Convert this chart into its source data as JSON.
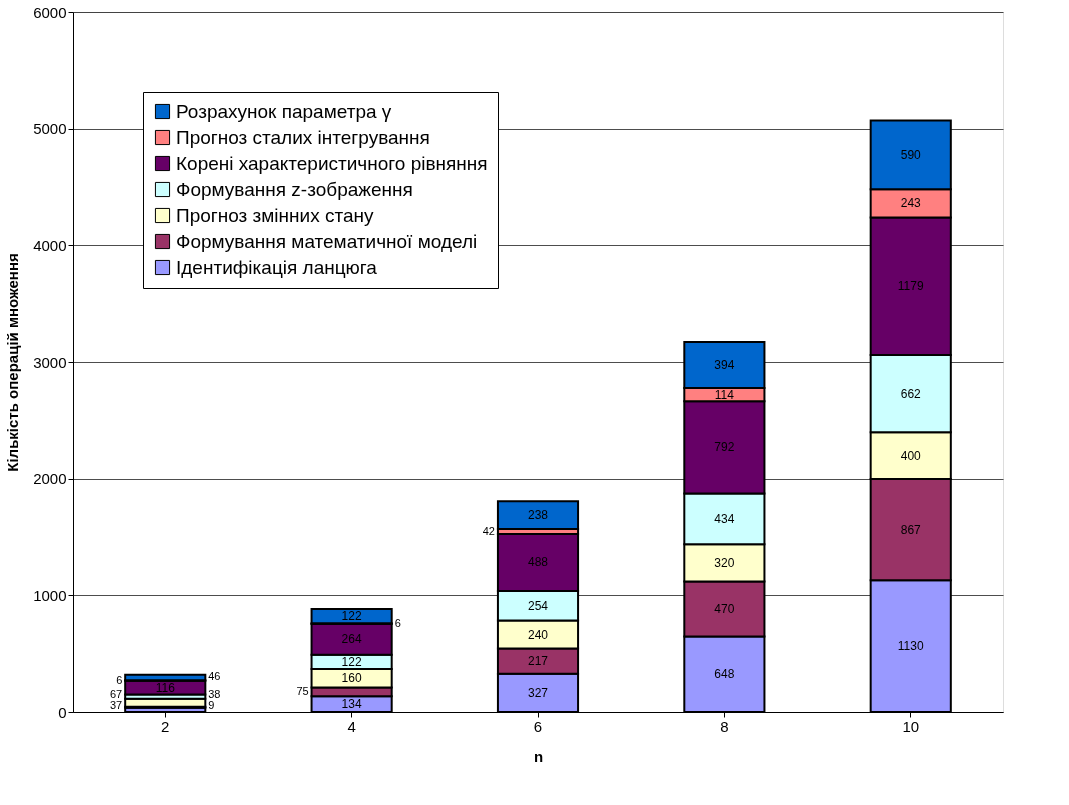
{
  "chart_data": {
    "type": "bar",
    "stacked": true,
    "xlabel": "n",
    "ylabel": "Кількість операцій множення",
    "categories": [
      "2",
      "4",
      "6",
      "8",
      "10"
    ],
    "series": [
      {
        "name": "Ідентифікація ланцюга",
        "color": "#9999ff",
        "values": [
          37,
          134,
          327,
          648,
          1130
        ]
      },
      {
        "name": "Формування математичної моделі",
        "color": "#993366",
        "values": [
          9,
          75,
          217,
          470,
          867
        ]
      },
      {
        "name": "Прогноз змінних стану",
        "color": "#ffffcc",
        "values": [
          67,
          160,
          240,
          320,
          400
        ]
      },
      {
        "name": "Формування z-зображення",
        "color": "#ccffff",
        "values": [
          38,
          122,
          254,
          434,
          662
        ]
      },
      {
        "name": "Корені характеристичного рівняння",
        "color": "#660066",
        "values": [
          116,
          264,
          488,
          792,
          1179
        ]
      },
      {
        "name": "Прогноз сталих інтегрування",
        "color": "#ff8080",
        "values": [
          6,
          6,
          42,
          114,
          243
        ]
      },
      {
        "name": "Розрахунок параметра γ",
        "color": "#0066cc",
        "values": [
          46,
          122,
          238,
          394,
          590
        ]
      }
    ],
    "ylim": [
      0,
      6000
    ],
    "yticks": [
      0,
      1000,
      2000,
      3000,
      4000,
      5000,
      6000
    ],
    "grid": "y",
    "legend": "top left",
    "data_labels": true
  }
}
